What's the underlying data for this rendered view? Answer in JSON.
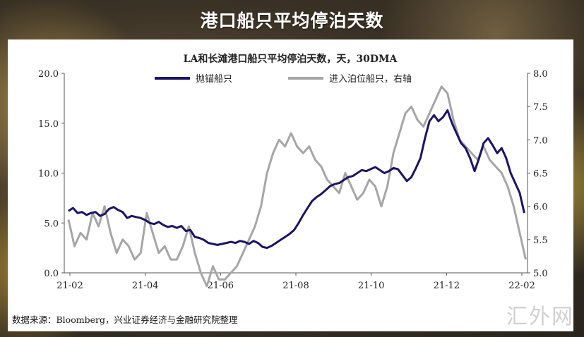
{
  "page_title": "港口船只平均停泊天数",
  "source": "数据来源：Bloomberg，兴业证券经济与金融研究院整理",
  "watermark": "汇外网",
  "chart_data": {
    "type": "line",
    "title": "LA和长滩港口船只平均停泊天数，天，30DMA",
    "x_tick_labels": [
      "21-02",
      "21-04",
      "21-06",
      "21-08",
      "21-10",
      "21-12",
      "22-02"
    ],
    "left_axis": {
      "ylim": [
        0,
        20
      ],
      "ticks": [
        0,
        5,
        10,
        15,
        20
      ],
      "tick_labels": [
        "0.0",
        "5.0",
        "10.0",
        "15.0",
        "20.0"
      ]
    },
    "right_axis": {
      "ylim": [
        5,
        8
      ],
      "ticks": [
        5,
        5.5,
        6,
        6.5,
        7,
        7.5,
        8
      ],
      "tick_labels": [
        "5.0",
        "5.5",
        "6.0",
        "6.5",
        "7.0",
        "7.5",
        "8.0"
      ]
    },
    "x_range_months": [
      0,
      12.2
    ],
    "legend_position": "top",
    "series": [
      {
        "name": "抛锚船只",
        "axis": "left",
        "color": "#1b1464",
        "x": [
          0,
          0.15,
          0.3,
          0.45,
          0.6,
          0.75,
          0.9,
          1.05,
          1.2,
          1.35,
          1.5,
          1.65,
          1.8,
          1.95,
          2.1,
          2.25,
          2.4,
          2.55,
          2.7,
          2.85,
          3.0,
          3.15,
          3.3,
          3.45,
          3.6,
          3.75,
          3.9,
          4.05,
          4.2,
          4.35,
          4.5,
          4.65,
          4.8,
          4.95,
          5.1,
          5.25,
          5.4,
          5.55,
          5.7,
          5.85,
          6.0,
          6.15,
          6.3,
          6.45,
          6.6,
          6.75,
          6.9,
          7.05,
          7.2,
          7.35,
          7.5,
          7.65,
          7.8,
          7.95,
          8.1,
          8.25,
          8.4,
          8.55,
          8.7,
          8.85,
          9.0,
          9.15,
          9.3,
          9.45,
          9.6,
          9.75,
          9.9,
          10.05,
          10.2,
          10.35,
          10.5,
          10.65,
          10.8,
          10.95,
          11.1,
          11.25,
          11.4,
          11.55,
          11.7,
          11.85,
          12.0,
          12.15
        ],
        "y": [
          6.2,
          6.5,
          6.0,
          6.1,
          5.8,
          6.0,
          6.1,
          5.7,
          5.9,
          6.4,
          6.6,
          6.3,
          6.1,
          5.5,
          5.7,
          5.6,
          5.5,
          5.3,
          5.0,
          4.9,
          5.1,
          4.8,
          4.6,
          4.7,
          4.5,
          4.7,
          4.2,
          4.3,
          3.6,
          3.5,
          3.3,
          3.0,
          2.9,
          2.8,
          2.9,
          3.0,
          3.1,
          3.0,
          3.2,
          3.1,
          2.9,
          3.2,
          3.0,
          2.6,
          2.5,
          2.7,
          3.0,
          3.3,
          3.6,
          3.9,
          4.3,
          5.0,
          5.8,
          6.5,
          7.2,
          7.6,
          7.9,
          8.3,
          8.7,
          8.9,
          9.0,
          9.3,
          9.6,
          9.7,
          10.0,
          10.3,
          10.2,
          10.4,
          10.6,
          10.3,
          10.0,
          10.2,
          10.5,
          10.4,
          9.8,
          9.2,
          9.6,
          10.5,
          11.5,
          13.5,
          15.2,
          15.8
        ],
        "x_tail": [
          12.3,
          12.45,
          12.6,
          12.75,
          12.9,
          13.05,
          13.2,
          13.35,
          13.5,
          13.65,
          13.8,
          13.95,
          14.1,
          14.25,
          14.4,
          14.55,
          14.7,
          14.85,
          15.0,
          15.15
        ],
        "y_tail": [
          15.2,
          15.6,
          16.3,
          15.0,
          14.0,
          13.0,
          12.5,
          11.5,
          10.2,
          11.5,
          13.0,
          13.5,
          12.8,
          12.0,
          12.5,
          11.5,
          10.0,
          9.0,
          8.0,
          6.0
        ]
      },
      {
        "name": "进入泊位船只，右轴",
        "axis": "right",
        "color": "#a6a6a6",
        "x": [
          0,
          0.2,
          0.4,
          0.6,
          0.8,
          1.0,
          1.2,
          1.4,
          1.6,
          1.8,
          2.0,
          2.2,
          2.4,
          2.6,
          2.8,
          3.0,
          3.2,
          3.4,
          3.6,
          3.8,
          4.0,
          4.2,
          4.4,
          4.6,
          4.8,
          5.0,
          5.2,
          5.4,
          5.6,
          5.8,
          6.0,
          6.2,
          6.4,
          6.6,
          6.8,
          7.0,
          7.2,
          7.4,
          7.6,
          7.8,
          8.0,
          8.2,
          8.4,
          8.6,
          8.8,
          9.0,
          9.2,
          9.4,
          9.6,
          9.8,
          10.0,
          10.2,
          10.4,
          10.6,
          10.8,
          11.0,
          11.2,
          11.4,
          11.6,
          11.8,
          12.0,
          12.2,
          12.4,
          12.6,
          12.8,
          13.0,
          13.2,
          13.4,
          13.6,
          13.8,
          14.0,
          14.2,
          14.4,
          14.6,
          14.8,
          15.0,
          15.2
        ],
        "y": [
          5.8,
          5.4,
          5.6,
          5.5,
          5.9,
          5.7,
          6.0,
          5.6,
          5.3,
          5.5,
          5.4,
          5.2,
          5.3,
          5.9,
          5.6,
          5.3,
          5.4,
          5.2,
          5.2,
          5.4,
          5.7,
          5.3,
          5.0,
          4.8,
          5.1,
          4.9,
          4.9,
          5.0,
          5.1,
          5.3,
          5.5,
          5.7,
          6.0,
          6.5,
          6.8,
          7.0,
          6.9,
          7.1,
          6.9,
          6.8,
          6.9,
          6.7,
          6.6,
          6.4,
          6.3,
          6.2,
          6.5,
          6.3,
          6.1,
          6.2,
          6.4,
          6.3,
          6.0,
          6.3,
          6.8,
          7.1,
          7.4,
          7.5,
          7.3,
          7.2,
          7.4,
          7.6,
          7.8,
          7.7,
          7.3,
          7.0,
          6.9,
          6.8,
          6.7,
          6.9,
          6.7,
          6.6,
          6.5,
          6.3,
          6.0,
          5.6,
          5.2
        ]
      }
    ]
  }
}
